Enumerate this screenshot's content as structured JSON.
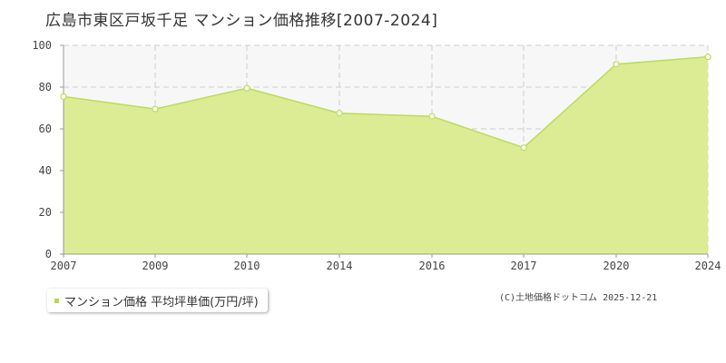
{
  "title": "広島市東区戸坂千足 マンション価格推移[2007-2024]",
  "legend": {
    "label": "マンション価格 平均坪単価(万円/坪)"
  },
  "credit": "(C)土地価格ドットコム 2025-12-21",
  "colors": {
    "area_fill": "#dbec94",
    "line": "#bcdc55",
    "plot_bg": "#f7f7f7",
    "grid": "#cccccc",
    "axis": "#999999",
    "marker_fill": "#ffffff",
    "legend_swatch": "#b8d84a"
  },
  "chart_data": {
    "type": "area",
    "x": [
      "2007",
      "2009",
      "2010",
      "2014",
      "2016",
      "2017",
      "2020",
      "2024"
    ],
    "values": [
      75.5,
      69.5,
      79.5,
      67.5,
      66.0,
      51.0,
      91.0,
      94.5
    ],
    "ylim": [
      0,
      100
    ],
    "yticks": [
      "0",
      "20",
      "40",
      "60",
      "80",
      "100"
    ],
    "grid": true,
    "series": [
      {
        "name": "マンション価格 平均坪単価(万円/坪)"
      }
    ]
  }
}
